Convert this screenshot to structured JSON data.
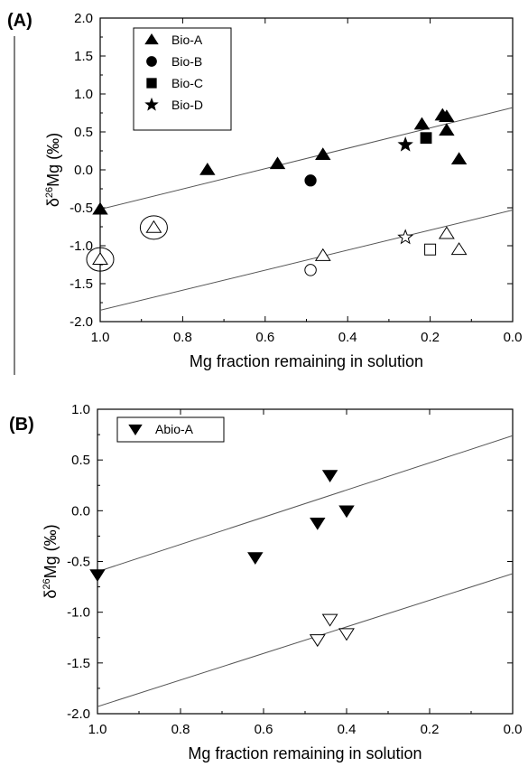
{
  "chart_data": [
    {
      "type": "scatter",
      "panel_label": "(A)",
      "xlabel": "Mg fraction remaining in solution",
      "ylabel_prefix": "δ",
      "ylabel_sup": "26",
      "ylabel_suffix": "Mg (‰)",
      "xlim": [
        1.0,
        0.0
      ],
      "ylim": [
        -2.0,
        2.0
      ],
      "xticks": [
        "1.0",
        "0.8",
        "0.6",
        "0.4",
        "0.2",
        "0.0"
      ],
      "yticks": [
        "2.0",
        "1.5",
        "1.0",
        "0.5",
        "0.0",
        "-0.5",
        "-1.0",
        "-1.5",
        "-2.0"
      ],
      "legend_position": "top-left",
      "series": [
        {
          "name": "Bio-A",
          "marker": "triangle",
          "fill": "filled",
          "points": [
            [
              1.0,
              -0.52
            ],
            [
              0.74,
              0.0
            ],
            [
              0.57,
              0.08
            ],
            [
              0.46,
              0.2
            ],
            [
              0.22,
              0.6
            ],
            [
              0.17,
              0.72
            ],
            [
              0.16,
              0.7
            ],
            [
              0.16,
              0.52
            ],
            [
              0.13,
              0.14
            ]
          ]
        },
        {
          "name": "Bio-B",
          "marker": "circle",
          "fill": "filled",
          "points": [
            [
              0.49,
              -0.14
            ]
          ]
        },
        {
          "name": "Bio-C",
          "marker": "square",
          "fill": "filled",
          "points": [
            [
              0.21,
              0.42
            ]
          ]
        },
        {
          "name": "Bio-D",
          "marker": "star",
          "fill": "filled",
          "points": [
            [
              0.26,
              0.33
            ]
          ]
        },
        {
          "marker": "triangle",
          "fill": "open",
          "points": [
            [
              1.0,
              -1.18
            ],
            [
              0.87,
              -0.76
            ],
            [
              0.46,
              -1.13
            ],
            [
              0.16,
              -0.84
            ],
            [
              0.13,
              -1.05
            ]
          ]
        },
        {
          "marker": "circle",
          "fill": "open",
          "points": [
            [
              0.49,
              -1.32
            ]
          ]
        },
        {
          "marker": "square",
          "fill": "open",
          "points": [
            [
              0.2,
              -1.05
            ]
          ]
        },
        {
          "marker": "star",
          "fill": "open",
          "points": [
            [
              0.26,
              -0.89
            ]
          ]
        }
      ],
      "circled_points": [
        [
          1.0,
          -1.18
        ],
        [
          0.87,
          -0.76
        ]
      ],
      "fit_lines": [
        {
          "x": [
            1.0,
            0.0
          ],
          "y": [
            -0.52,
            0.82
          ]
        },
        {
          "x": [
            1.0,
            0.0
          ],
          "y": [
            -1.85,
            -0.53
          ]
        }
      ]
    },
    {
      "type": "scatter",
      "panel_label": "(B)",
      "xlabel": "Mg fraction remaining in solution",
      "ylabel_prefix": "δ",
      "ylabel_sup": "26",
      "ylabel_suffix": "Mg (‰)",
      "xlim": [
        1.0,
        0.0
      ],
      "ylim": [
        -2.0,
        1.0
      ],
      "xticks": [
        "1.0",
        "0.8",
        "0.6",
        "0.4",
        "0.2",
        "0.0"
      ],
      "yticks": [
        "1.0",
        "0.5",
        "0.0",
        "-0.5",
        "-1.0",
        "-1.5",
        "-2.0"
      ],
      "legend_position": "top-left",
      "series": [
        {
          "name": "Abio-A",
          "marker": "triangle-down",
          "fill": "filled",
          "points": [
            [
              1.0,
              -0.63
            ],
            [
              0.62,
              -0.46
            ],
            [
              0.47,
              -0.12
            ],
            [
              0.44,
              0.35
            ],
            [
              0.4,
              0.0
            ]
          ]
        },
        {
          "marker": "triangle-down",
          "fill": "open",
          "points": [
            [
              0.47,
              -1.27
            ],
            [
              0.44,
              -1.07
            ],
            [
              0.4,
              -1.21
            ]
          ]
        }
      ],
      "fit_lines": [
        {
          "x": [
            1.0,
            0.0
          ],
          "y": [
            -0.6,
            0.74
          ]
        },
        {
          "x": [
            1.0,
            0.0
          ],
          "y": [
            -1.93,
            -0.62
          ]
        }
      ]
    }
  ]
}
